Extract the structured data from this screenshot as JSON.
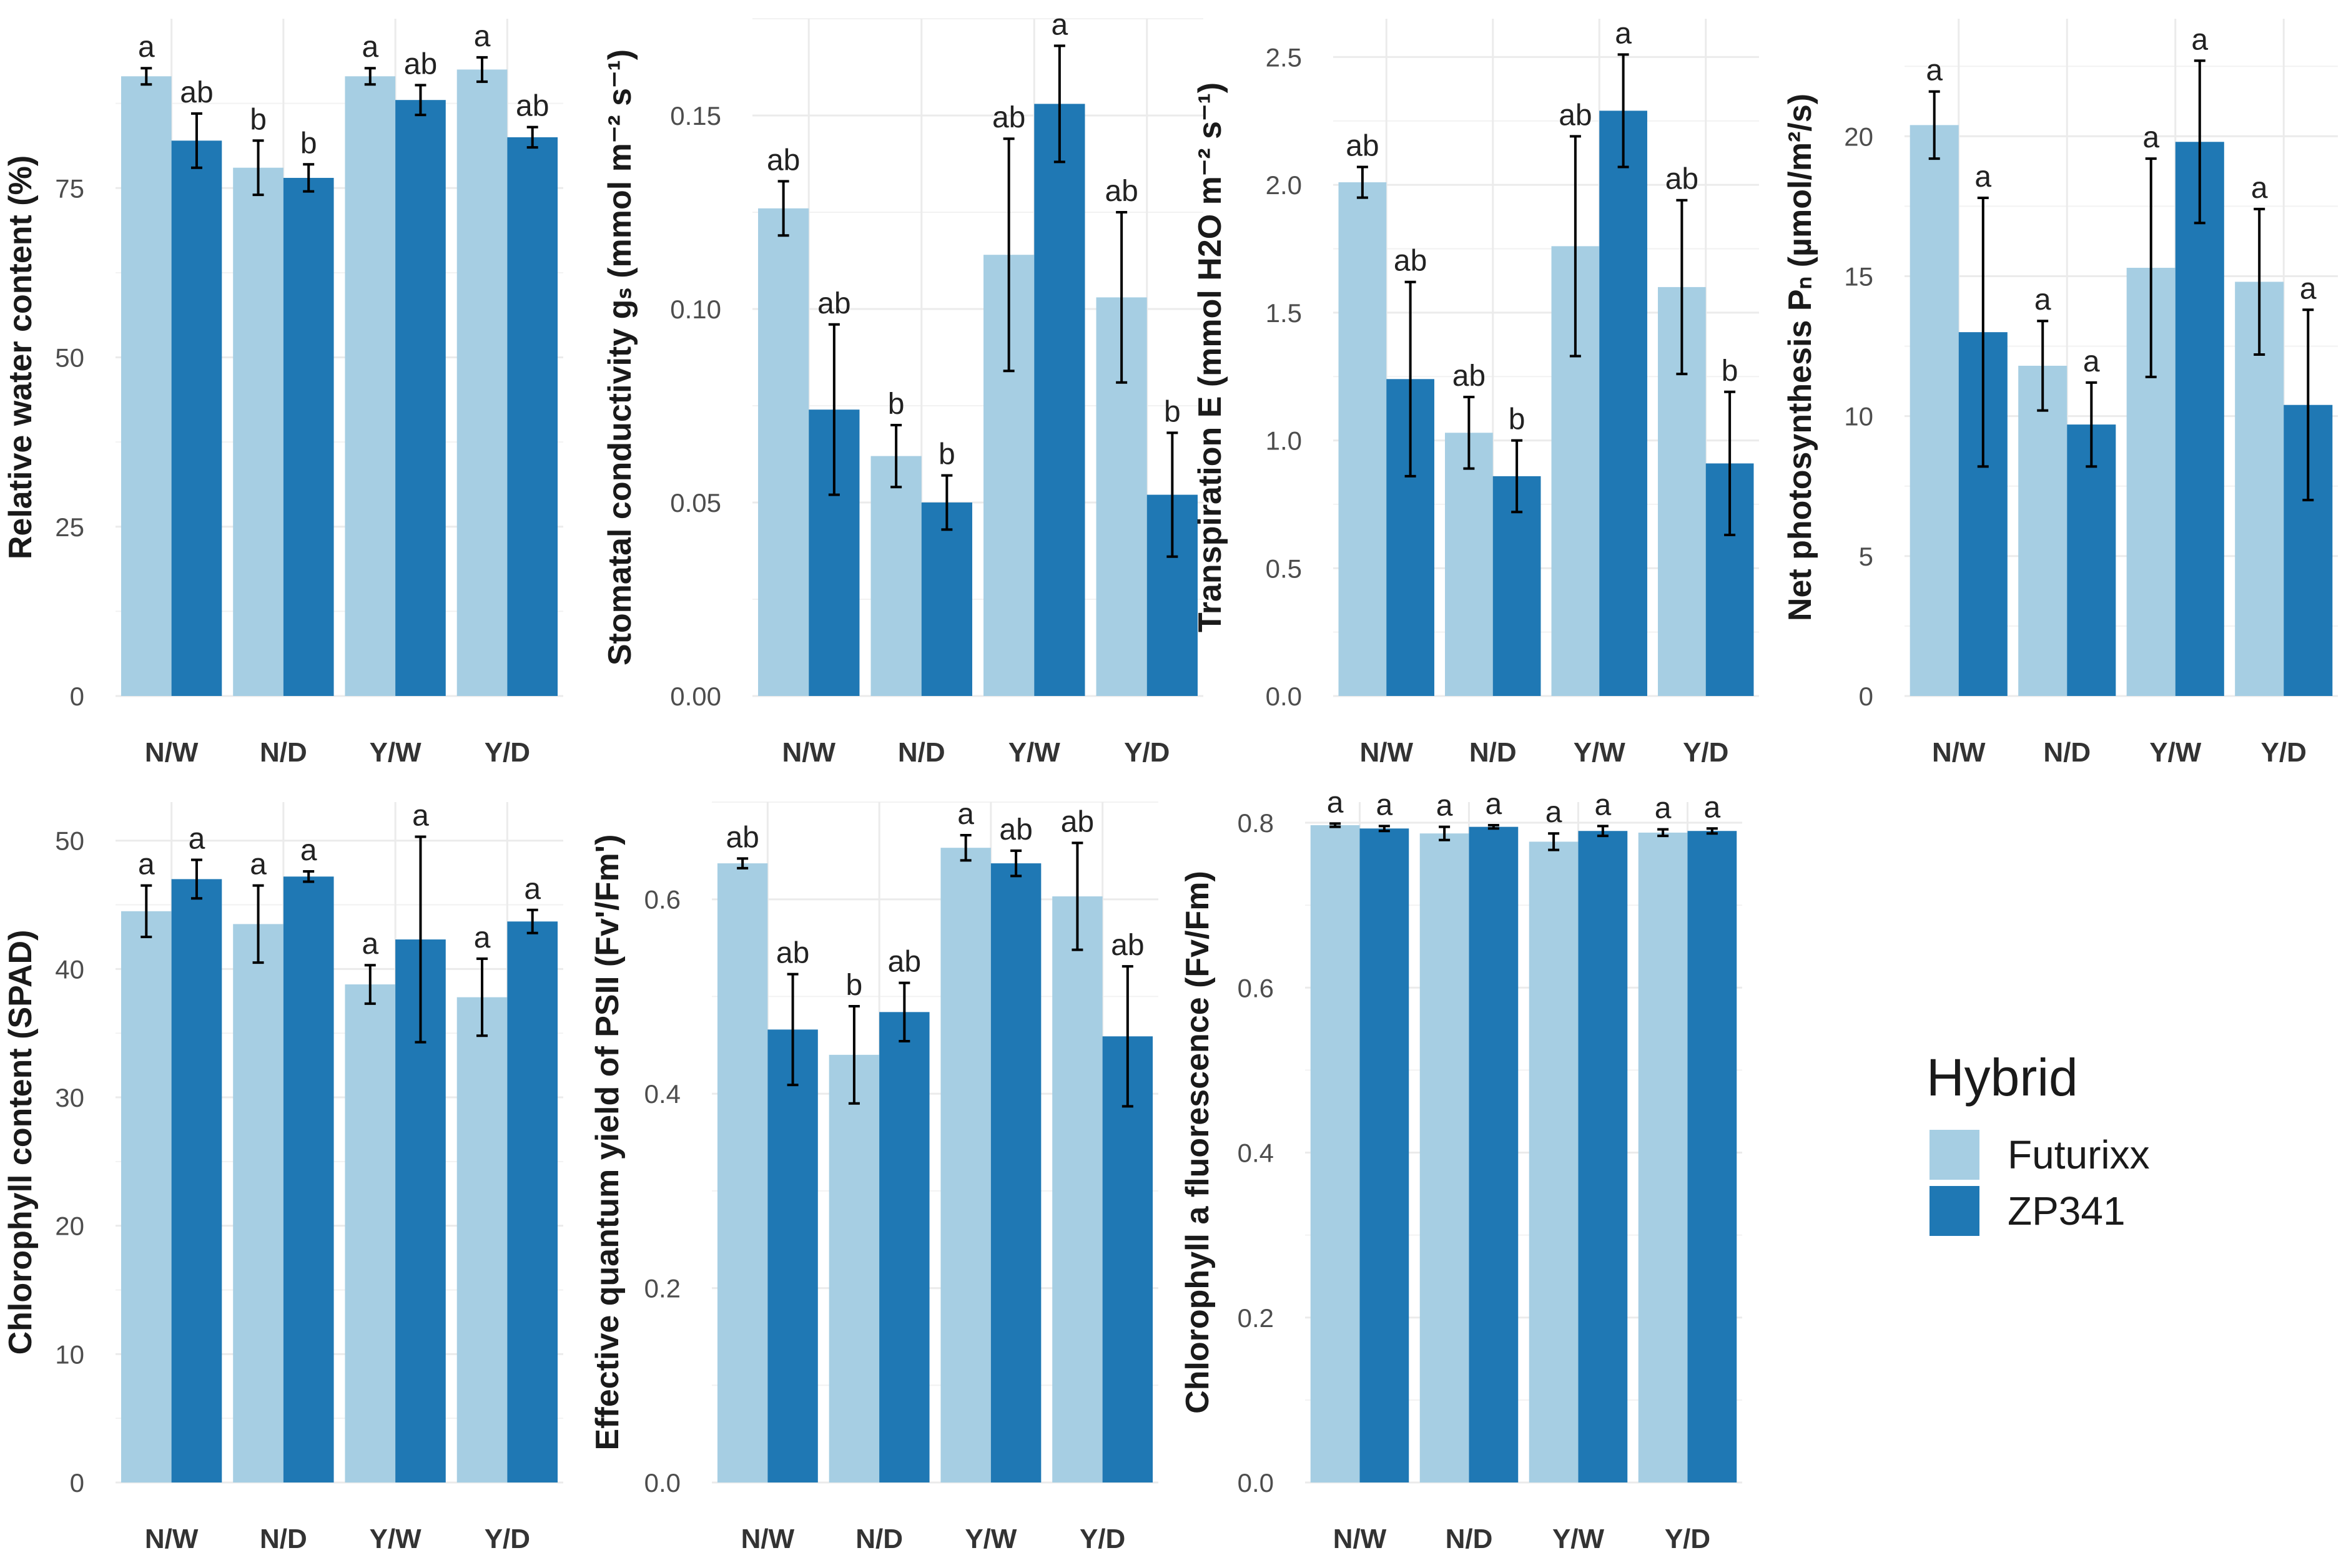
{
  "colors": {
    "Futurixx": "#a6cee3",
    "ZP341": "#1f78b4",
    "grid": "#ebebeb",
    "error": "#000000"
  },
  "legend": {
    "title": "Hybrid",
    "entries": [
      "Futurixx",
      "ZP341"
    ]
  },
  "chart_data": [
    {
      "type": "bar",
      "id": "rwc",
      "ylabel": "Relative water content (%)",
      "categories": [
        "N/W",
        "N/D",
        "Y/W",
        "Y/D"
      ],
      "ylim": [
        0,
        100
      ],
      "yticks": [
        0,
        25,
        50,
        75
      ],
      "series": [
        {
          "name": "Futurixx",
          "values": [
            91.5,
            78,
            91.5,
            92.5
          ],
          "err": [
            1.2,
            4,
            1.2,
            1.8
          ],
          "letters": [
            "a",
            "b",
            "a",
            "a"
          ]
        },
        {
          "name": "ZP341",
          "values": [
            82,
            76.5,
            88,
            82.5
          ],
          "err": [
            4,
            2,
            2.2,
            1.5
          ],
          "letters": [
            "ab",
            "b",
            "ab",
            "ab"
          ]
        }
      ]
    },
    {
      "type": "bar",
      "id": "gs",
      "ylabel": "Stomatal conductivity gₛ (mmol m⁻² s⁻¹)",
      "categories": [
        "N/W",
        "N/D",
        "Y/W",
        "Y/D"
      ],
      "ylim": [
        0,
        0.175
      ],
      "yticks": [
        0.0,
        0.05,
        0.1,
        0.15
      ],
      "ydecimals": 2,
      "series": [
        {
          "name": "Futurixx",
          "values": [
            0.126,
            0.062,
            0.114,
            0.103
          ],
          "err": [
            0.007,
            0.008,
            0.03,
            0.022
          ],
          "letters": [
            "ab",
            "b",
            "ab",
            "ab"
          ]
        },
        {
          "name": "ZP341",
          "values": [
            0.074,
            0.05,
            0.153,
            0.052
          ],
          "err": [
            0.022,
            0.007,
            0.015,
            0.016
          ],
          "letters": [
            "ab",
            "b",
            "a",
            "b"
          ]
        }
      ]
    },
    {
      "type": "bar",
      "id": "transp",
      "ylabel": "Transpiration E (mmol H2O m⁻² s⁻¹)",
      "categories": [
        "N/W",
        "N/D",
        "Y/W",
        "Y/D"
      ],
      "ylim": [
        0,
        2.65
      ],
      "yticks": [
        0.0,
        0.5,
        1.0,
        1.5,
        2.0,
        2.5
      ],
      "ydecimals": 1,
      "series": [
        {
          "name": "Futurixx",
          "values": [
            2.01,
            1.03,
            1.76,
            1.6
          ],
          "err": [
            0.06,
            0.14,
            0.43,
            0.34
          ],
          "letters": [
            "ab",
            "ab",
            "ab",
            "ab"
          ]
        },
        {
          "name": "ZP341",
          "values": [
            1.24,
            0.86,
            2.29,
            0.91
          ],
          "err": [
            0.38,
            0.14,
            0.22,
            0.28
          ],
          "letters": [
            "ab",
            "b",
            "a",
            "b"
          ]
        }
      ]
    },
    {
      "type": "bar",
      "id": "pn",
      "ylabel": "Net photosynthesis Pₙ (µmol/m²/s)",
      "categories": [
        "N/W",
        "N/D",
        "Y/W",
        "Y/D"
      ],
      "ylim": [
        0,
        24.2
      ],
      "yticks": [
        0,
        5,
        10,
        15,
        20
      ],
      "series": [
        {
          "name": "Futurixx",
          "values": [
            20.4,
            11.8,
            15.3,
            14.8
          ],
          "err": [
            1.2,
            1.6,
            3.9,
            2.6
          ],
          "letters": [
            "a",
            "a",
            "a",
            "a"
          ]
        },
        {
          "name": "ZP341",
          "values": [
            13,
            9.7,
            19.8,
            10.4
          ],
          "err": [
            4.8,
            1.5,
            2.9,
            3.4
          ],
          "letters": [
            "a",
            "a",
            "a",
            "a"
          ]
        }
      ]
    },
    {
      "type": "bar",
      "id": "spad",
      "ylabel": "Chlorophyll content (SPAD)",
      "categories": [
        "N/W",
        "N/D",
        "Y/W",
        "Y/D"
      ],
      "ylim": [
        0,
        53
      ],
      "yticks": [
        0,
        10,
        20,
        30,
        40,
        50
      ],
      "series": [
        {
          "name": "Futurixx",
          "values": [
            44.5,
            43.5,
            38.8,
            37.8
          ],
          "err": [
            2,
            3,
            1.5,
            3
          ],
          "letters": [
            "a",
            "a",
            "a",
            "a"
          ]
        },
        {
          "name": "ZP341",
          "values": [
            47,
            47.2,
            42.3,
            43.7
          ],
          "err": [
            1.5,
            0.4,
            8,
            0.9
          ],
          "letters": [
            "a",
            "a",
            "a",
            "a"
          ]
        }
      ]
    },
    {
      "type": "bar",
      "id": "phipsii",
      "ylabel": "Effective quantum yield of PSII (Fv'/Fm')",
      "categories": [
        "N/W",
        "N/D",
        "Y/W",
        "Y/D"
      ],
      "ylim": [
        0,
        0.7
      ],
      "yticks": [
        0.0,
        0.2,
        0.4,
        0.6
      ],
      "ydecimals": 1,
      "series": [
        {
          "name": "Futurixx",
          "values": [
            0.637,
            0.44,
            0.653,
            0.603
          ],
          "err": [
            0.005,
            0.05,
            0.013,
            0.055
          ],
          "letters": [
            "ab",
            "b",
            "a",
            "ab"
          ]
        },
        {
          "name": "ZP341",
          "values": [
            0.466,
            0.484,
            0.637,
            0.459
          ],
          "err": [
            0.057,
            0.03,
            0.013,
            0.072
          ],
          "letters": [
            "ab",
            "ab",
            "ab",
            "ab"
          ]
        }
      ]
    },
    {
      "type": "bar",
      "id": "fvfm",
      "ylabel": "Chlorophyll a fluorescence (Fv/Fm)",
      "categories": [
        "N/W",
        "N/D",
        "Y/W",
        "Y/D"
      ],
      "ylim": [
        0,
        0.825
      ],
      "yticks": [
        0.0,
        0.2,
        0.4,
        0.6,
        0.8
      ],
      "ydecimals": 1,
      "series": [
        {
          "name": "Futurixx",
          "values": [
            0.797,
            0.787,
            0.777,
            0.788
          ],
          "err": [
            0.002,
            0.008,
            0.01,
            0.004
          ],
          "letters": [
            "a",
            "a",
            "a",
            "a"
          ]
        },
        {
          "name": "ZP341",
          "values": [
            0.793,
            0.795,
            0.79,
            0.79
          ],
          "err": [
            0.003,
            0.002,
            0.006,
            0.003
          ],
          "letters": [
            "a",
            "a",
            "a",
            "a"
          ]
        }
      ]
    }
  ]
}
